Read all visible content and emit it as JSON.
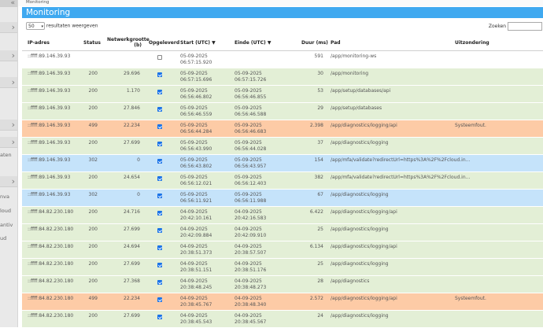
{
  "breadcrumb": "Monitoring",
  "title": "Monitoring",
  "page_size": "50",
  "page_size_suffix": "resultaten weergeven",
  "search_label": "Zoeken",
  "columns": {
    "ip": "IP-adres",
    "status": "Status",
    "netsize1": "Netwerkgrootte",
    "netsize2": "(b)",
    "saved": "Opgeleverd",
    "start": "Start (UTC) ▼",
    "end": "Einde (UTC) ▼",
    "dur": "Duur (ms)",
    "path": "Pad",
    "exc": "Uitzondering"
  },
  "sidebar_fragments": [
    "aten",
    "nva",
    "loud",
    "antiv",
    "ud"
  ],
  "colors": {
    "green": "#e3efd6",
    "orange": "#fdcba6",
    "blue": "#c5e3fa",
    "white": "#ffffff",
    "header": "#3fa9f0"
  },
  "rows": [
    {
      "ip": "::ffff:89.146.39.93",
      "status": "",
      "size": "",
      "checked": false,
      "start_date": "05-09-2025",
      "start_time": "06:57:15.920",
      "end_date": "",
      "end_time": "",
      "dur": "591",
      "path": "/app/monitoring-ws",
      "exc": "",
      "color": "white"
    },
    {
      "ip": "::ffff:89.146.39.93",
      "status": "200",
      "size": "29.696",
      "checked": true,
      "start_date": "05-09-2025",
      "start_time": "06:57:15.696",
      "end_date": "05-09-2025",
      "end_time": "06:57:15.726",
      "dur": "30",
      "path": "/app/monitoring",
      "exc": "",
      "color": "green"
    },
    {
      "ip": "::ffff:89.146.39.93",
      "status": "200",
      "size": "1.170",
      "checked": true,
      "start_date": "05-09-2025",
      "start_time": "06:56:46.802",
      "end_date": "05-09-2025",
      "end_time": "06:56:46.855",
      "dur": "53",
      "path": "/app/setup/databases/api",
      "exc": "",
      "color": "green"
    },
    {
      "ip": "::ffff:89.146.39.93",
      "status": "200",
      "size": "27.846",
      "checked": true,
      "start_date": "05-09-2025",
      "start_time": "06:56:46.559",
      "end_date": "05-09-2025",
      "end_time": "06:56:46.588",
      "dur": "29",
      "path": "/app/setup/databases",
      "exc": "",
      "color": "green"
    },
    {
      "ip": "::ffff:89.146.39.93",
      "status": "499",
      "size": "22.234",
      "checked": true,
      "start_date": "05-09-2025",
      "start_time": "06:56:44.284",
      "end_date": "05-09-2025",
      "end_time": "06:56:46.683",
      "dur": "2.398",
      "path": "/app/diagnostics/logging/api",
      "exc": "Systeemfout.",
      "color": "orange"
    },
    {
      "ip": "::ffff:89.146.39.93",
      "status": "200",
      "size": "27.699",
      "checked": true,
      "start_date": "05-09-2025",
      "start_time": "06:56:43.990",
      "end_date": "05-09-2025",
      "end_time": "06:56:44.028",
      "dur": "37",
      "path": "/app/diagnostics/logging",
      "exc": "",
      "color": "green"
    },
    {
      "ip": "::ffff:89.146.39.93",
      "status": "302",
      "size": "0",
      "checked": true,
      "start_date": "05-09-2025",
      "start_time": "06:56:43.802",
      "end_date": "05-09-2025",
      "end_time": "06:56:43.957",
      "dur": "154",
      "path": "/app/mfa/validate?redirectUrl=https%3A%2F%2Fcloud.in...",
      "exc": "",
      "color": "blue"
    },
    {
      "ip": "::ffff:89.146.39.93",
      "status": "200",
      "size": "24.654",
      "checked": true,
      "start_date": "05-09-2025",
      "start_time": "06:56:12.021",
      "end_date": "05-09-2025",
      "end_time": "06:56:12.403",
      "dur": "382",
      "path": "/app/mfa/validate?redirectUrl=https%3A%2F%2Fcloud.in...",
      "exc": "",
      "color": "green"
    },
    {
      "ip": "::ffff:89.146.39.93",
      "status": "302",
      "size": "0",
      "checked": true,
      "start_date": "05-09-2025",
      "start_time": "06:56:11.921",
      "end_date": "05-09-2025",
      "end_time": "06:56:11.988",
      "dur": "67",
      "path": "/app/diagnostics/logging",
      "exc": "",
      "color": "blue"
    },
    {
      "ip": "::ffff:84.82.230.180",
      "status": "200",
      "size": "24.716",
      "checked": true,
      "start_date": "04-09-2025",
      "start_time": "20:42:10.161",
      "end_date": "04-09-2025",
      "end_time": "20:42:16.583",
      "dur": "6.422",
      "path": "/app/diagnostics/logging/api",
      "exc": "",
      "color": "green"
    },
    {
      "ip": "::ffff:84.82.230.180",
      "status": "200",
      "size": "27.699",
      "checked": true,
      "start_date": "04-09-2025",
      "start_time": "20:42:09.884",
      "end_date": "04-09-2025",
      "end_time": "20:42:09.910",
      "dur": "25",
      "path": "/app/diagnostics/logging",
      "exc": "",
      "color": "green"
    },
    {
      "ip": "::ffff:84.82.230.180",
      "status": "200",
      "size": "24.694",
      "checked": true,
      "start_date": "04-09-2025",
      "start_time": "20:38:51.373",
      "end_date": "04-09-2025",
      "end_time": "20:38:57.507",
      "dur": "6.134",
      "path": "/app/diagnostics/logging/api",
      "exc": "",
      "color": "green"
    },
    {
      "ip": "::ffff:84.82.230.180",
      "status": "200",
      "size": "27.699",
      "checked": true,
      "start_date": "04-09-2025",
      "start_time": "20:38:51.151",
      "end_date": "04-09-2025",
      "end_time": "20:38:51.176",
      "dur": "25",
      "path": "/app/diagnostics/logging",
      "exc": "",
      "color": "green"
    },
    {
      "ip": "::ffff:84.82.230.180",
      "status": "200",
      "size": "27.368",
      "checked": true,
      "start_date": "04-09-2025",
      "start_time": "20:38:48.245",
      "end_date": "04-09-2025",
      "end_time": "20:38:48.273",
      "dur": "28",
      "path": "/app/diagnostics",
      "exc": "",
      "color": "green"
    },
    {
      "ip": "::ffff:84.82.230.180",
      "status": "499",
      "size": "22.234",
      "checked": true,
      "start_date": "04-09-2025",
      "start_time": "20:38:45.767",
      "end_date": "04-09-2025",
      "end_time": "20:38:48.340",
      "dur": "2.572",
      "path": "/app/diagnostics/logging/api",
      "exc": "Systeemfout.",
      "color": "orange"
    },
    {
      "ip": "::ffff:84.82.230.180",
      "status": "200",
      "size": "27.699",
      "checked": true,
      "start_date": "04-09-2025",
      "start_time": "20:38:45.543",
      "end_date": "04-09-2025",
      "end_time": "20:38:45.567",
      "dur": "24",
      "path": "/app/diagnostics/logging",
      "exc": "",
      "color": "green"
    }
  ]
}
